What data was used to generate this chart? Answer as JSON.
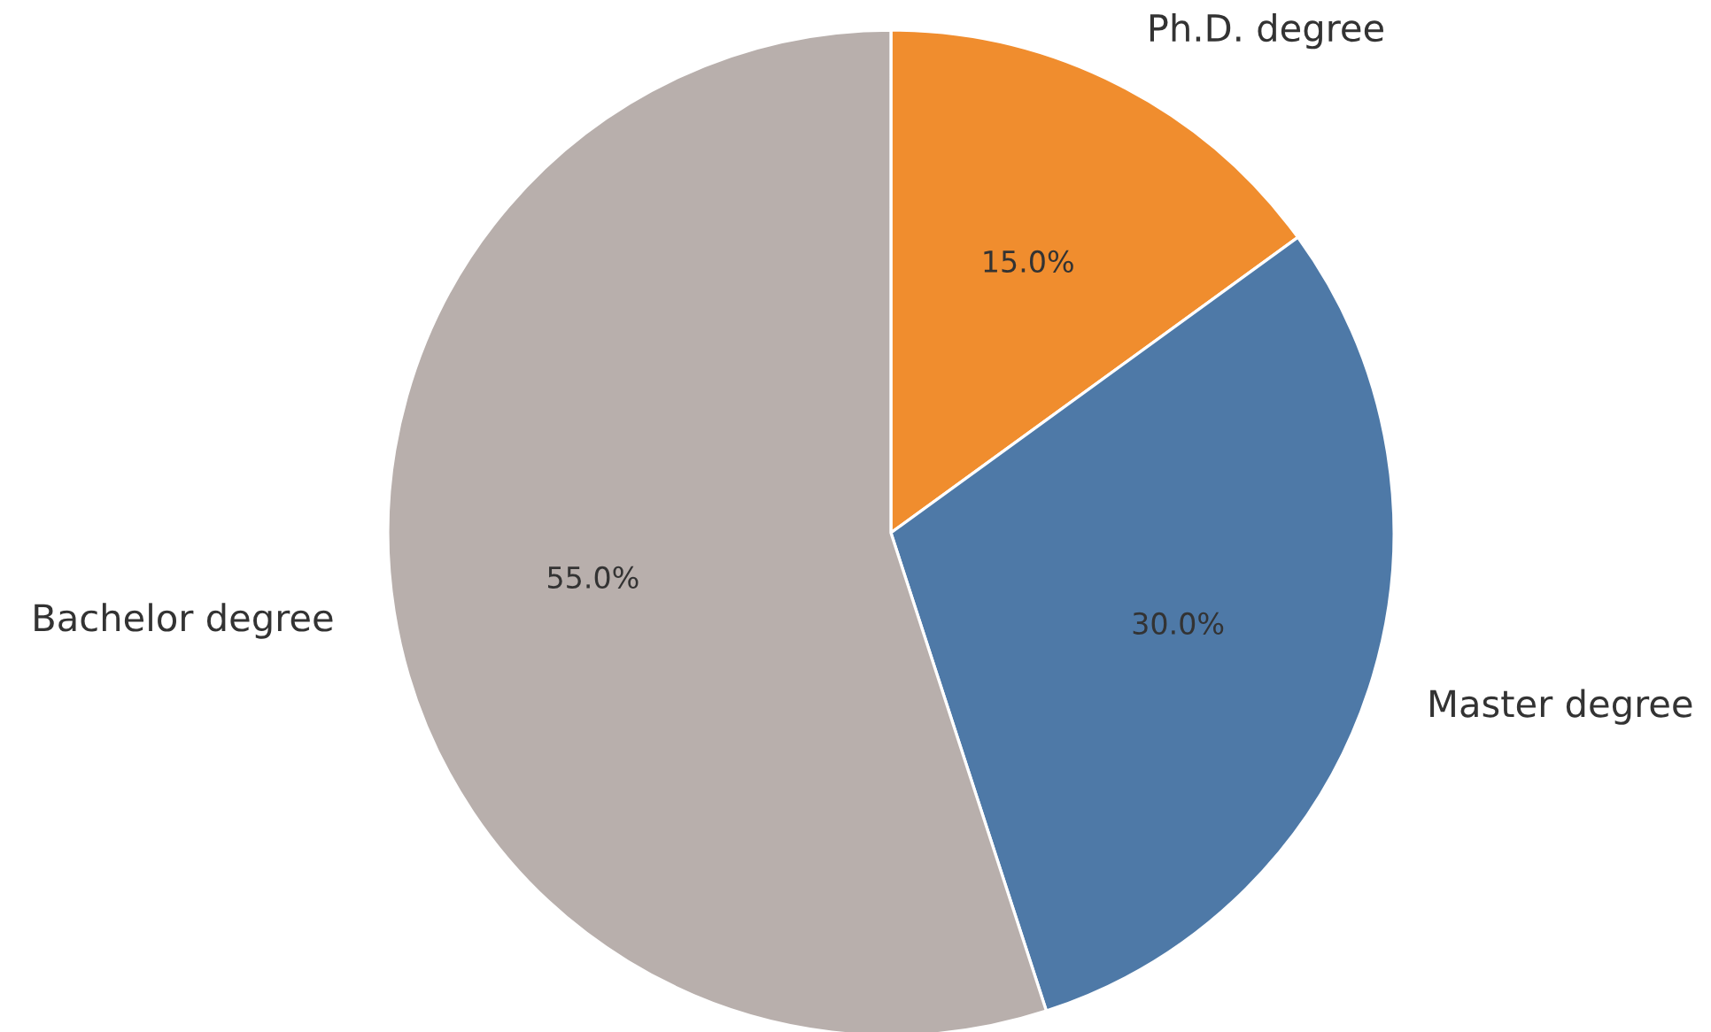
{
  "chart_data": {
    "type": "pie",
    "categories": [
      "Ph.D. degree",
      "Master degree",
      "Bachelor degree"
    ],
    "values": [
      15,
      30,
      55
    ],
    "colors": [
      "#f08d2e",
      "#4e79a7",
      "#b8afac"
    ],
    "value_labels": [
      "15.0%",
      "30.0%",
      "55.0%"
    ]
  }
}
